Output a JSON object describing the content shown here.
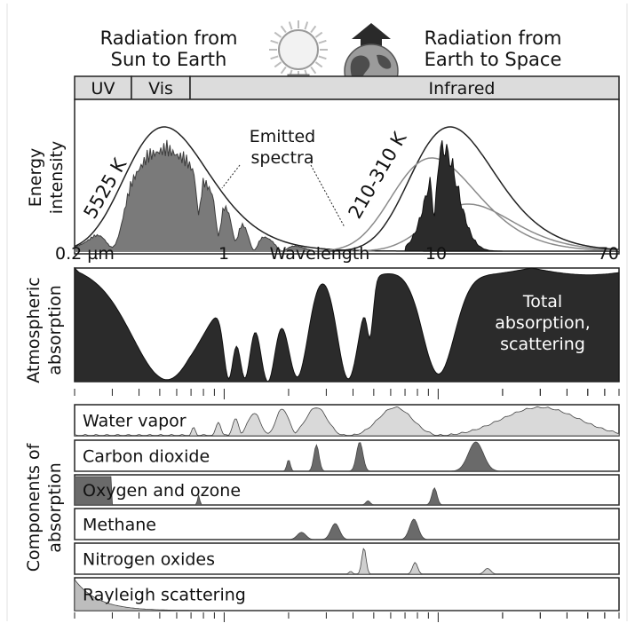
{
  "header": {
    "sun_title_line1": "Radiation from",
    "sun_title_line2": "Sun to Earth",
    "earth_title_line1": "Radiation from",
    "earth_title_line2": "Earth to Space",
    "sun_icon": "sun-icon",
    "earth_icon": "earth-globe-icon"
  },
  "bands": {
    "uv": "UV",
    "vis": "Vis",
    "ir": "Infrared"
  },
  "spectrum_panel": {
    "ylabel_line1": "Energy",
    "ylabel_line2": "intensity",
    "sun_temp": "5525 K",
    "earth_temp": "210-310 K",
    "emitted_line1": "Emitted",
    "emitted_line2": "spectra"
  },
  "axis": {
    "xlabel": "Wavelength",
    "ticks": [
      {
        "value": 0.2,
        "label": "0.2 µm"
      },
      {
        "value": 1,
        "label": "1"
      },
      {
        "value": 10,
        "label": "10"
      },
      {
        "value": 70,
        "label": "70"
      }
    ]
  },
  "absorption_panel": {
    "ylabel_line1": "Atmospheric",
    "ylabel_line2": "absorption",
    "note_line1": "Total",
    "note_line2": "absorption,",
    "note_line3": "scattering"
  },
  "components_panel": {
    "ylabel_line1": "Components of",
    "ylabel_line2": "absorption",
    "rows": [
      {
        "label": "Water vapor"
      },
      {
        "label": "Carbon dioxide"
      },
      {
        "label": "Oxygen and ozone"
      },
      {
        "label": "Methane"
      },
      {
        "label": "Nitrogen oxides"
      },
      {
        "label": "Rayleigh scattering"
      }
    ]
  },
  "colors": {
    "dark_fill": "#2b2b2b",
    "mid_fill": "#7a7a7a",
    "light_fill": "#d9d9d9",
    "band_fill": "#dcdcdc"
  }
}
